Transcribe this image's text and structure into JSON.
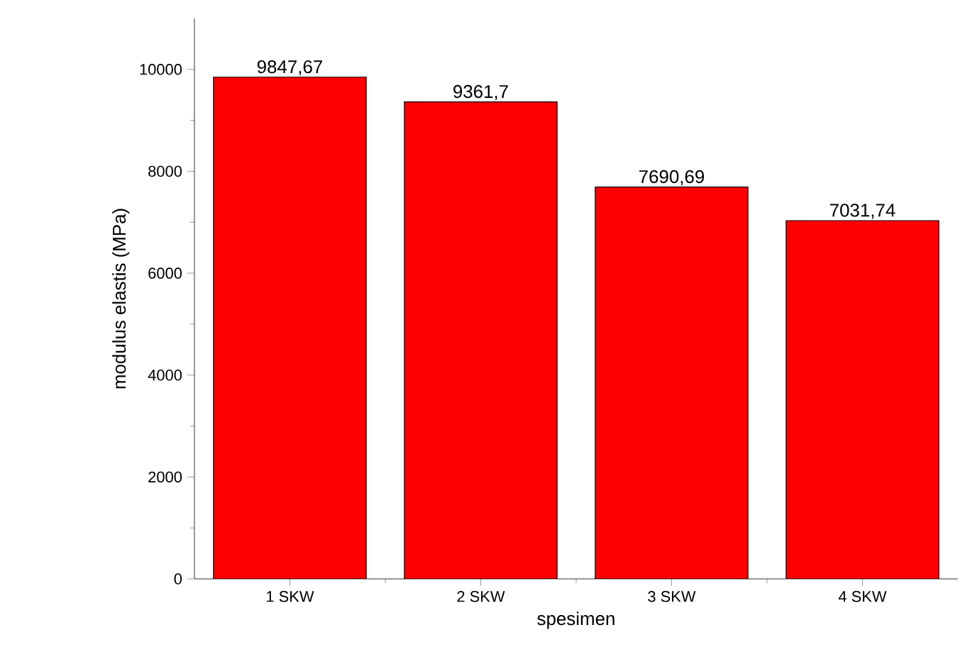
{
  "chart_data": {
    "type": "bar",
    "xlabel": "spesimen",
    "ylabel": "modulus elastis (MPa)",
    "categories": [
      "1 SKW",
      "2 SKW",
      "3 SKW",
      "4 SKW"
    ],
    "values": [
      9847.67,
      9361.7,
      7690.69,
      7031.74
    ],
    "value_labels": [
      "9847,67",
      "9361,7",
      "7690,69",
      "7031,74"
    ],
    "color": "#ff0000",
    "ylim": [
      0,
      11000
    ],
    "yticks": [
      0,
      2000,
      4000,
      6000,
      8000,
      10000
    ],
    "grid": false
  }
}
